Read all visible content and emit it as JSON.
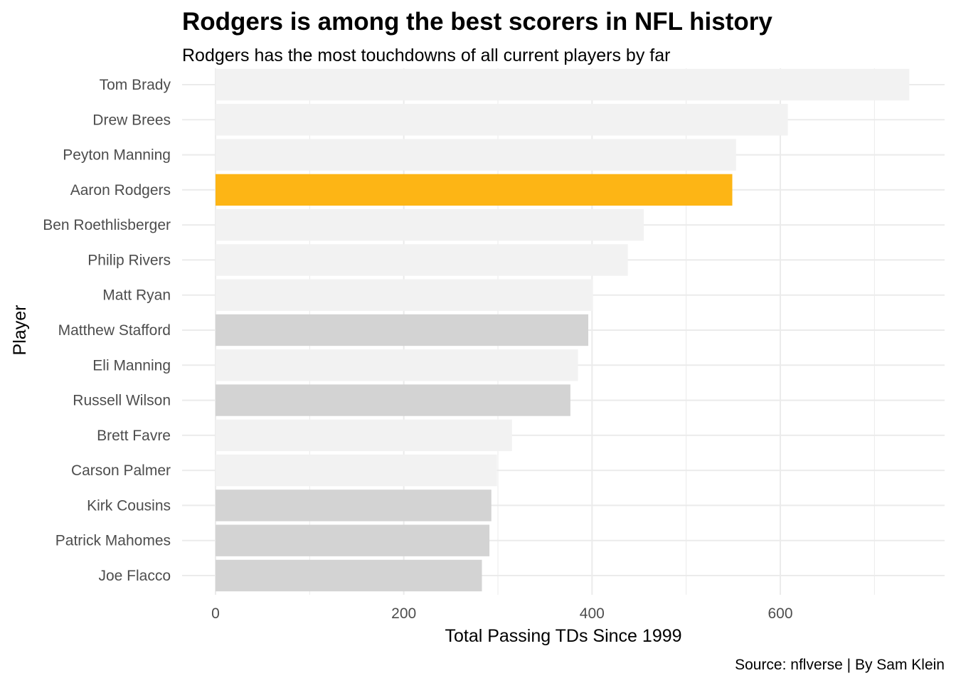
{
  "chart_data": {
    "type": "bar",
    "orientation": "horizontal",
    "title": "Rodgers is among the best scorers in NFL history",
    "subtitle": "Rodgers has the most touchdowns of all current players by far",
    "caption": "Source: nflverse | By Sam Klein",
    "xlabel": "Total Passing TDs Since 1999",
    "ylabel": "Player",
    "xlim": [
      0,
      750
    ],
    "x_ticks": [
      0,
      200,
      400,
      600
    ],
    "grid": true,
    "legend": "none",
    "colors": {
      "highlight": "#FDB515",
      "active": "#D3D3D3",
      "retired": "#F2F2F2"
    },
    "categories": [
      "Tom Brady",
      "Drew Brees",
      "Peyton Manning",
      "Aaron Rodgers",
      "Ben Roethlisberger",
      "Philip Rivers",
      "Matt Ryan",
      "Matthew Stafford",
      "Eli Manning",
      "Russell Wilson",
      "Brett Favre",
      "Carson Palmer",
      "Kirk Cousins",
      "Patrick Mahomes",
      "Joe Flacco"
    ],
    "values": [
      737,
      608,
      553,
      549,
      455,
      438,
      401,
      396,
      385,
      377,
      315,
      299,
      293,
      291,
      283
    ],
    "bar_colors": [
      "#F2F2F2",
      "#F2F2F2",
      "#F2F2F2",
      "#FDB515",
      "#F2F2F2",
      "#F2F2F2",
      "#F2F2F2",
      "#D3D3D3",
      "#F2F2F2",
      "#D3D3D3",
      "#F2F2F2",
      "#F2F2F2",
      "#D3D3D3",
      "#D3D3D3",
      "#D3D3D3"
    ]
  }
}
